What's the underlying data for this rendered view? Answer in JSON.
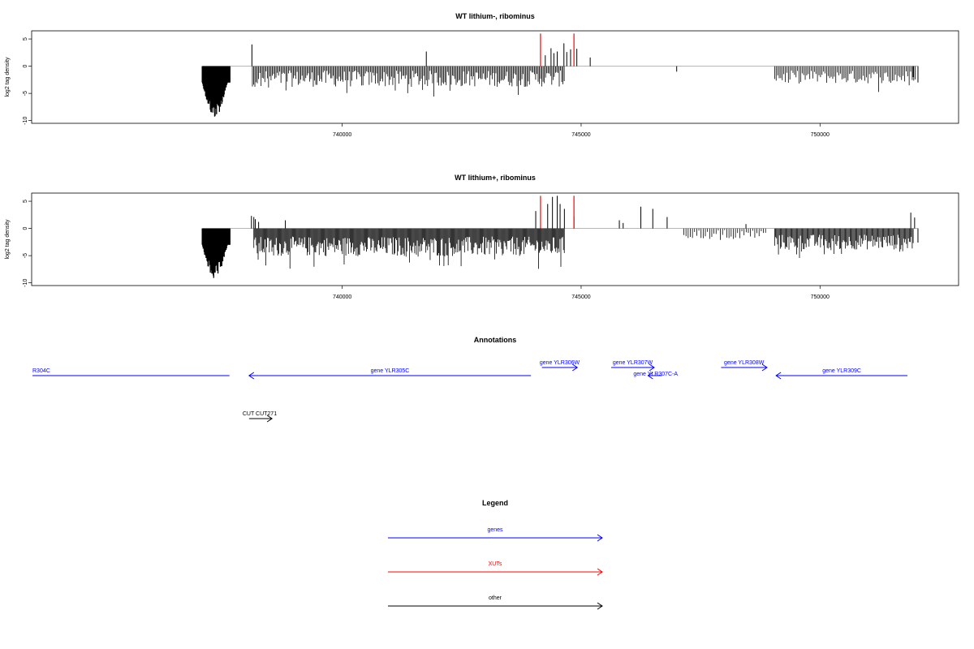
{
  "colors": {
    "gene": "#0000ff",
    "xut": "#ff0000",
    "other": "#000000",
    "track": "#000000",
    "baseline": "#9e9e9e"
  },
  "chart_data": [
    {
      "type": "bar",
      "title": "WT lithium-, ribominus",
      "ylabel": "log2 tag density",
      "ylim": [
        -10.5,
        6.5
      ],
      "yticks": [
        -10,
        -5,
        0,
        5
      ],
      "ytick_labels": [
        "-10",
        "-5",
        "0",
        "5"
      ],
      "xlim": [
        733500,
        752900
      ],
      "xticks": [
        740000,
        745000,
        750000
      ],
      "xtick_labels": [
        "740000",
        "745000",
        "750000"
      ],
      "red_marks": [
        744150,
        744850
      ],
      "segments": [
        {
          "from": 737070,
          "to": 737650,
          "mean": -6.5,
          "amp": 2.5,
          "step": 10,
          "dense": true
        },
        {
          "from": 738120,
          "to": 744650,
          "mean": -2.3,
          "amp": 1.5,
          "step": 26
        },
        {
          "from": 749050,
          "to": 752000,
          "mean": -2.0,
          "amp": 1.2,
          "step": 32
        }
      ],
      "points": [
        [
          738110,
          4.0
        ],
        [
          741760,
          2.7
        ],
        [
          744250,
          2.0
        ],
        [
          744370,
          3.3
        ],
        [
          744430,
          2.4
        ],
        [
          744500,
          2.7
        ],
        [
          744640,
          4.2
        ],
        [
          744700,
          2.6
        ],
        [
          744780,
          3.1
        ],
        [
          744910,
          3.2
        ],
        [
          745190,
          1.6
        ],
        [
          747000,
          -1.0
        ],
        [
          751950,
          -2.0
        ],
        [
          752050,
          -3.0
        ]
      ]
    },
    {
      "type": "bar",
      "title": "WT lithium+, ribominus",
      "ylabel": "log2 tag density",
      "ylim": [
        -10.5,
        6.5
      ],
      "yticks": [
        -10,
        -5,
        0,
        5
      ],
      "ytick_labels": [
        "-10",
        "-5",
        "0",
        "5"
      ],
      "xlim": [
        733500,
        752900
      ],
      "xticks": [
        740000,
        745000,
        750000
      ],
      "xtick_labels": [
        "740000",
        "745000",
        "750000"
      ],
      "red_marks": [
        744150,
        744850
      ],
      "segments": [
        {
          "from": 737070,
          "to": 737650,
          "mean": -6.5,
          "amp": 2.5,
          "step": 10,
          "dense": true
        },
        {
          "from": 738150,
          "to": 744650,
          "mean": -3.3,
          "amp": 1.8,
          "step": 18
        },
        {
          "from": 747150,
          "to": 748900,
          "mean": -1.1,
          "amp": 0.9,
          "step": 45
        },
        {
          "from": 749050,
          "to": 751950,
          "mean": -2.5,
          "amp": 1.4,
          "step": 20
        }
      ],
      "points": [
        [
          738100,
          2.3
        ],
        [
          738150,
          2.1
        ],
        [
          738180,
          1.7
        ],
        [
          738250,
          1.2
        ],
        [
          738810,
          1.5
        ],
        [
          744050,
          3.2
        ],
        [
          744300,
          4.5
        ],
        [
          744400,
          5.8
        ],
        [
          744500,
          6.0
        ],
        [
          744560,
          4.5
        ],
        [
          744650,
          3.6
        ],
        [
          744850,
          2.2
        ],
        [
          745800,
          1.5
        ],
        [
          745880,
          1.0
        ],
        [
          746250,
          4.0
        ],
        [
          746500,
          3.6
        ],
        [
          746800,
          2.1
        ],
        [
          748450,
          0.8
        ],
        [
          751900,
          2.9
        ],
        [
          751980,
          2.0
        ],
        [
          752050,
          -2.6
        ]
      ]
    }
  ],
  "annotations": {
    "title": "Annotations",
    "features": [
      {
        "label": "R304C",
        "x1": 732000,
        "x2": 737640,
        "dir": "none",
        "color": "gene",
        "row": 0
      },
      {
        "label": "gene YLR305C",
        "x1": 738050,
        "x2": 743950,
        "dir": "left",
        "color": "gene",
        "row": 0
      },
      {
        "label": "gene YLR306W",
        "x1": 744180,
        "x2": 744920,
        "dir": "right",
        "color": "gene",
        "row": -1
      },
      {
        "label": "gene YLR307W",
        "x1": 745630,
        "x2": 746530,
        "dir": "right",
        "color": "gene",
        "row": -1
      },
      {
        "label": "gene YLR307C-A",
        "x1": 746400,
        "x2": 746690,
        "dir": "left",
        "color": "gene",
        "row": 0
      },
      {
        "label": "gene YLR308W",
        "x1": 747930,
        "x2": 748890,
        "dir": "right",
        "color": "gene",
        "row": -1
      },
      {
        "label": "gene YLR309C",
        "x1": 749080,
        "x2": 751830,
        "dir": "left",
        "color": "gene",
        "row": 0
      },
      {
        "label": "CUT CUT271",
        "x1": 738050,
        "x2": 738530,
        "dir": "right",
        "color": "other",
        "row": 2
      }
    ]
  },
  "legend": {
    "title": "Legend",
    "items": [
      {
        "label": "genes",
        "color": "gene"
      },
      {
        "label": "XUTs",
        "color": "xut"
      },
      {
        "label": "other",
        "color": "other"
      }
    ]
  }
}
